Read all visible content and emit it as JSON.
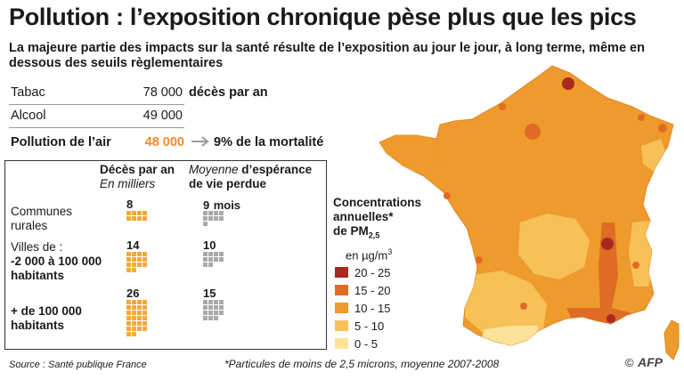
{
  "title": "Pollution : l’exposition chronique pèse plus que les pics",
  "subtitle": "La majeure partie des impacts sur la santé résulte de l’exposition au jour le jour, à long terme, même en dessous des seuils règlementaires",
  "stats": {
    "rows": [
      {
        "label": "Tabac",
        "value": "78 000"
      },
      {
        "label": "Alcool",
        "value": "49 000"
      }
    ],
    "deces_par_an_label": "décès par an",
    "air": {
      "label": "Pollution de l’air",
      "value": "48 000",
      "share": "9%",
      "share_suffix": "de la mortalité"
    }
  },
  "detail_table": {
    "col1_title": "Décès par an",
    "col1_subtitle": "En milliers",
    "col2_title_italic": "Moyenne",
    "col2_title_rest": " d’espérance",
    "col2_title_line2": "de vie perdue",
    "rows": [
      {
        "label_lines": [
          "Communes",
          "rurales"
        ],
        "bold": false,
        "deaths": "8",
        "deaths_count": 8,
        "life_lost": "9",
        "life_lost_unit": "mois",
        "life_lost_count": 9
      },
      {
        "label_lines": [
          "Villes de :",
          "-2 000 à 100 000",
          "habitants"
        ],
        "bold": false,
        "deaths": "14",
        "deaths_count": 14,
        "life_lost": "10",
        "life_lost_unit": "",
        "life_lost_count": 10
      },
      {
        "label_lines": [
          "+ de 100 000",
          "habitants"
        ],
        "bold": true,
        "deaths": "26",
        "deaths_count": 26,
        "life_lost": "15",
        "life_lost_unit": "",
        "life_lost_count": 15
      }
    ]
  },
  "legend": {
    "title_lines": [
      "Concentrations",
      "annuelles*",
      "de PM"
    ],
    "title_sub": "2,5",
    "unit_prefix": "en µg/m",
    "unit_sup": "3",
    "items": [
      {
        "label": "20 - 25",
        "color": "#a82a1e"
      },
      {
        "label": "15 - 20",
        "color": "#e06b25"
      },
      {
        "label": "10 - 15",
        "color": "#ef9a2c"
      },
      {
        "label": "5 - 10",
        "color": "#f7c158"
      },
      {
        "label": "0 - 5",
        "color": "#fde39a"
      }
    ]
  },
  "colors": {
    "air_value": "#ef8a2a",
    "deaths_square": "#f3a93a",
    "life_square": "#a9a9a9",
    "arrow": "#9a9a9a"
  },
  "source": "Source : Santé publique France",
  "footnote": "*Particules de moins de 2,5 microns, moyenne 2007-2008",
  "copyright": "©",
  "logo": "AFP"
}
